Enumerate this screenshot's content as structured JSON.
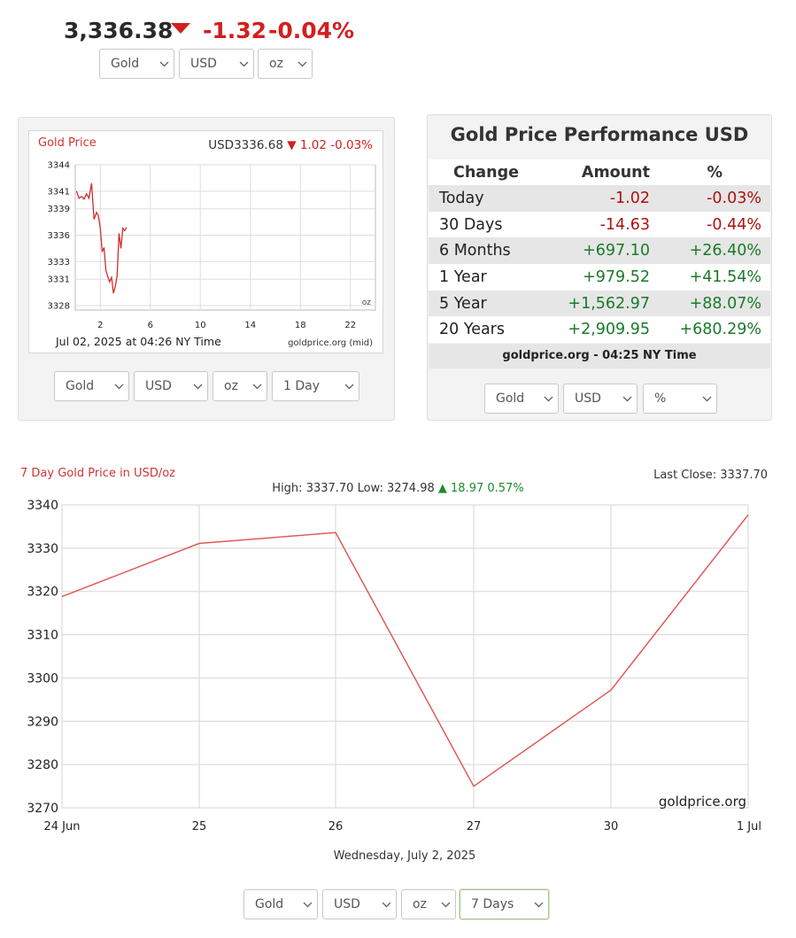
{
  "quote": {
    "price": "3,336.38",
    "change": "-1.32",
    "percent": "-0.04%",
    "selectors": [
      "Gold",
      "USD",
      "oz"
    ]
  },
  "mini_chart": {
    "title": "Gold Price",
    "header_price": "USD3336.68",
    "header_change": "1.02",
    "header_pct": "-0.03%",
    "unit": "oz",
    "footer_left": "Jul 02, 2025 at 04:26 NY Time",
    "footer_right": "goldprice.org (mid)",
    "selectors": [
      "Gold",
      "USD",
      "oz",
      "1 Day"
    ]
  },
  "performance": {
    "title": "Gold Price Performance USD",
    "headers": [
      "Change",
      "Amount",
      "%"
    ],
    "rows": [
      {
        "period": "Today",
        "amount": "-1.02",
        "pct": "-0.03%"
      },
      {
        "period": "30 Days",
        "amount": "-14.63",
        "pct": "-0.44%"
      },
      {
        "period": "6 Months",
        "amount": "+697.10",
        "pct": "+26.40%"
      },
      {
        "period": "1 Year",
        "amount": "+979.52",
        "pct": "+41.54%"
      },
      {
        "period": "5 Year",
        "amount": "+1,562.97",
        "pct": "+88.07%"
      },
      {
        "period": "20 Years",
        "amount": "+2,909.95",
        "pct": "+680.29%"
      }
    ],
    "footer": "goldprice.org - 04:25 NY Time",
    "selectors": [
      "Gold",
      "USD",
      "%"
    ]
  },
  "big_chart": {
    "title": "7 Day Gold Price in USD/oz",
    "last_close": "Last Close: 3337.70",
    "hilo_prefix": "High: 3337.70 Low: 3274.98",
    "hilo_change": "18.97 0.57%",
    "watermark": "goldprice.org",
    "date_label": "Wednesday, July 2, 2025",
    "selectors": [
      "Gold",
      "USD",
      "oz",
      "7 Days"
    ]
  },
  "colors": {
    "negative": "#d21f1f",
    "positive": "#1f8a2a",
    "line": "#e05a5a"
  },
  "chart_data": [
    {
      "type": "line",
      "title": "Gold Price",
      "xlabel": "",
      "ylabel": "",
      "x_ticks": [
        "2",
        "6",
        "10",
        "14",
        "18",
        "22"
      ],
      "y_ticks": [
        "3344",
        "3341",
        "3339",
        "3336",
        "3333",
        "3331",
        "3328"
      ],
      "xlim": [
        0,
        24
      ],
      "ylim": [
        3327.5,
        3344
      ],
      "x": [
        0.1,
        0.3,
        0.5,
        0.7,
        0.9,
        1.1,
        1.3,
        1.5,
        1.7,
        1.85,
        2.0,
        2.15,
        2.3,
        2.45,
        2.6,
        2.75,
        2.9,
        3.05,
        3.2,
        3.35,
        3.5,
        3.65,
        3.8,
        3.95,
        4.1
      ],
      "y": [
        3341.0,
        3340.2,
        3340.4,
        3340.1,
        3340.7,
        3340.2,
        3341.9,
        3337.8,
        3338.6,
        3338.2,
        3336.8,
        3334.1,
        3334.6,
        3332.0,
        3331.3,
        3330.7,
        3331.2,
        3329.4,
        3330.2,
        3331.4,
        3336.2,
        3334.5,
        3336.8,
        3336.5,
        3336.9
      ]
    },
    {
      "type": "line",
      "title": "7 Day Gold Price in USD/oz",
      "xlabel": "Wednesday, July 2, 2025",
      "ylabel": "",
      "categories": [
        "24 Jun",
        "25",
        "26",
        "27",
        "30",
        "1 Jul"
      ],
      "y_ticks": [
        3270,
        3280,
        3290,
        3300,
        3310,
        3320,
        3330,
        3340
      ],
      "ylim": [
        3270,
        3340
      ],
      "series": [
        {
          "name": "USD/oz",
          "values": [
            3318.8,
            3331.1,
            3333.6,
            3274.98,
            3297.2,
            3337.7
          ]
        }
      ]
    }
  ]
}
